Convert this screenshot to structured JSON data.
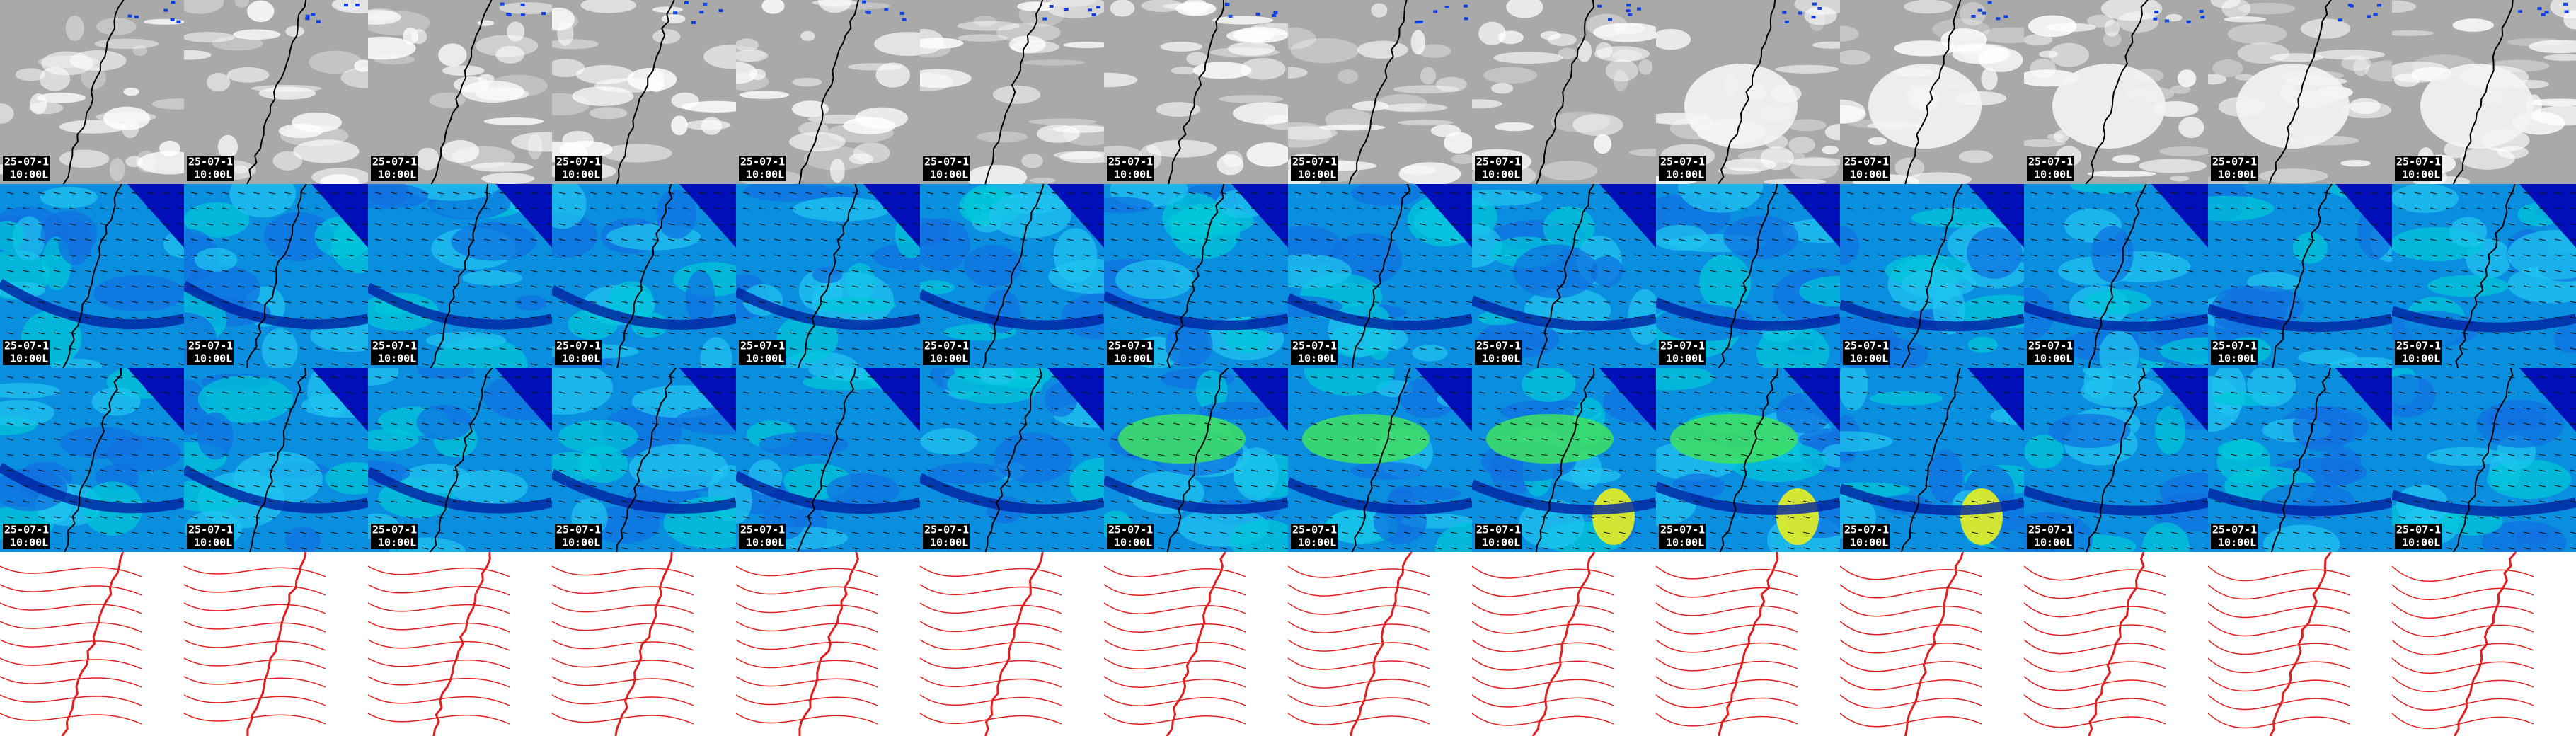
{
  "panels": [
    [
      {
        "date": "25-07-1",
        "time": "10:00L"
      },
      {
        "date": "25-07-1",
        "time": "10:00L"
      },
      {
        "date": "25-07-1",
        "time": "10:00L"
      },
      {
        "date": "25-07-1",
        "time": "10:00L"
      },
      {
        "date": "25-07-1",
        "time": "10:00L"
      },
      {
        "date": "25-07-1",
        "time": "10:00L"
      },
      {
        "date": "25-07-1",
        "time": "10:00L"
      },
      {
        "date": "25-07-1",
        "time": "10:00L"
      },
      {
        "date": "25-07-1",
        "time": "10:00L"
      },
      {
        "date": "25-07-1",
        "time": "10:00L"
      },
      {
        "date": "25-07-1",
        "time": "10:00L"
      },
      {
        "date": "25-07-1",
        "time": "10:00L"
      },
      {
        "date": "25-07-1",
        "time": "10:00L"
      },
      {
        "date": "25-07-1",
        "time": "10:00L"
      }
    ],
    [
      {
        "date": "25-07-1",
        "time": "10:00L"
      },
      {
        "date": "25-07-1",
        "time": "10:00L"
      },
      {
        "date": "25-07-1",
        "time": "10:00L"
      },
      {
        "date": "25-07-1",
        "time": "10:00L"
      },
      {
        "date": "25-07-1",
        "time": "10:00L"
      },
      {
        "date": "25-07-1",
        "time": "10:00L"
      },
      {
        "date": "25-07-1",
        "time": "10:00L"
      },
      {
        "date": "25-07-1",
        "time": "10:00L"
      },
      {
        "date": "25-07-1",
        "time": "10:00L"
      },
      {
        "date": "25-07-1",
        "time": "10:00L"
      },
      {
        "date": "25-07-1",
        "time": "10:00L"
      },
      {
        "date": "25-07-1",
        "time": "10:00L"
      },
      {
        "date": "25-07-1",
        "time": "10:00L"
      },
      {
        "date": "25-07-1",
        "time": "10:00L"
      }
    ],
    [
      {
        "date": "25-07-1",
        "time": "10:00L"
      },
      {
        "date": "25-07-1",
        "time": "10:00L"
      },
      {
        "date": "25-07-1",
        "time": "10:00L"
      },
      {
        "date": "25-07-1",
        "time": "10:00L"
      },
      {
        "date": "25-07-1",
        "time": "10:00L"
      },
      {
        "date": "25-07-1",
        "time": "10:00L"
      },
      {
        "date": "25-07-1",
        "time": "10:00L"
      },
      {
        "date": "25-07-1",
        "time": "10:00L"
      },
      {
        "date": "25-07-1",
        "time": "10:00L"
      },
      {
        "date": "25-07-1",
        "time": "10:00L"
      },
      {
        "date": "25-07-1",
        "time": "10:00L"
      },
      {
        "date": "25-07-1",
        "time": "10:00L"
      },
      {
        "date": "25-07-1",
        "time": "10:00L"
      },
      {
        "date": "25-07-1",
        "time": "10:00L"
      }
    ]
  ]
}
